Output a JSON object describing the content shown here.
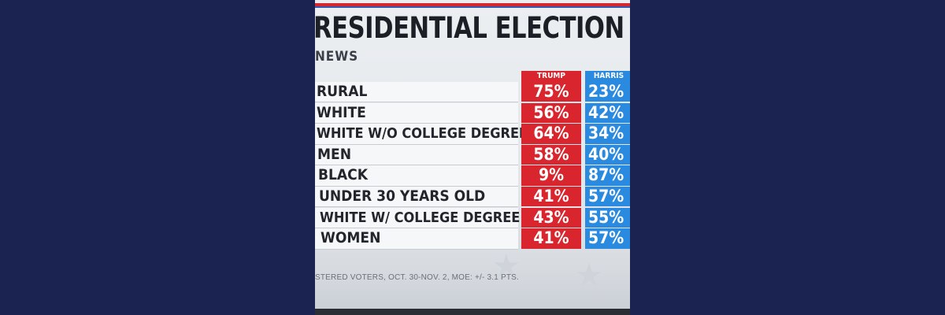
{
  "headline": "RESIDENTIAL ELECTION",
  "subhead": "NEWS",
  "columns": {
    "trump": "TRUMP",
    "harris": "HARRIS"
  },
  "rows": [
    {
      "label": "RURAL",
      "trump": "75%",
      "harris": "23%"
    },
    {
      "label": "WHITE",
      "trump": "56%",
      "harris": "42%"
    },
    {
      "label": "WHITE W/O COLLEGE DEGREE",
      "trump": "64%",
      "harris": "34%"
    },
    {
      "label": "MEN",
      "trump": "58%",
      "harris": "40%"
    },
    {
      "label": "BLACK",
      "trump": "9%",
      "harris": "87%"
    },
    {
      "label": "UNDER 30 YEARS OLD",
      "trump": "41%",
      "harris": "57%"
    },
    {
      "label": "WHITE W/ COLLEGE DEGREE",
      "trump": "43%",
      "harris": "55%"
    },
    {
      "label": "WOMEN",
      "trump": "41%",
      "harris": "57%"
    }
  ],
  "footnote": "STERED VOTERS, OCT. 30-NOV. 2, MOE: +/- 3.1 PTS.",
  "colors": {
    "trump": "#d9262e",
    "harris": "#2a8ae0",
    "background": "#1b2350"
  }
}
